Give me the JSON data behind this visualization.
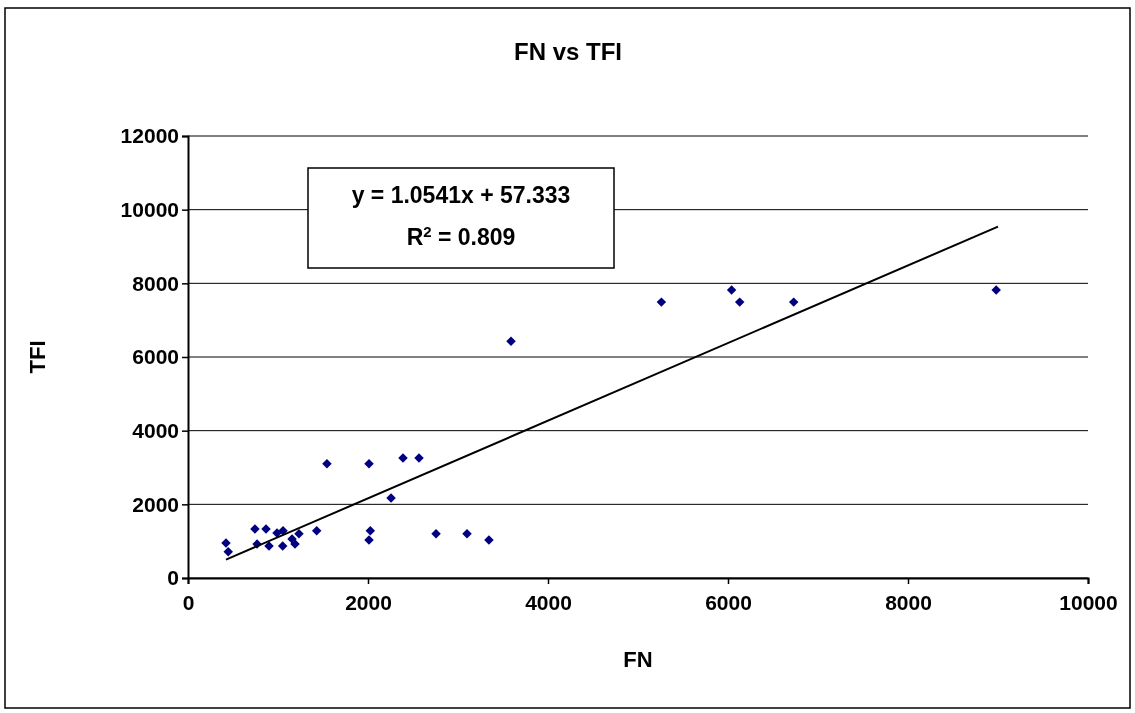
{
  "chart_data": {
    "type": "scatter",
    "title": "FN vs TFI",
    "xlabel": "FN",
    "ylabel": "TFI",
    "xlim": [
      0,
      10000
    ],
    "xticks": [
      0,
      2000,
      4000,
      6000,
      8000,
      10000
    ],
    "ylim": [
      0,
      12000
    ],
    "yticks": [
      0,
      2000,
      4000,
      6000,
      8000,
      10000,
      12000
    ],
    "grid": "y",
    "series": [
      {
        "type": "scatter",
        "marker": "diamond",
        "color": "#000080",
        "x": [
          422,
          447,
          744,
          767,
          867,
          900,
          989,
          1056,
          1052,
          1156,
          1189,
          1233,
          1430,
          1544,
          2011,
          2026,
          2011,
          2256,
          2389,
          2567,
          2756,
          3100,
          3344,
          3589,
          5260,
          6040,
          6130,
          6730,
          8980
        ],
        "values": [
          950,
          710,
          1330,
          920,
          1330,
          870,
          1220,
          1280,
          870,
          1060,
          920,
          1200,
          1280,
          3100,
          3100,
          1280,
          1030,
          2170,
          3260,
          3260,
          1200,
          1200,
          1030,
          6430,
          7490,
          7820,
          7490,
          7490,
          7820
        ]
      },
      {
        "type": "line",
        "color": "#000000",
        "line_style": "solid",
        "x": [
          422,
          9000
        ],
        "values": [
          500,
          9540
        ]
      }
    ],
    "annotations": [
      "y = 1.0541x + 57.333",
      "R$^{2}$ = 0.809"
    ]
  }
}
